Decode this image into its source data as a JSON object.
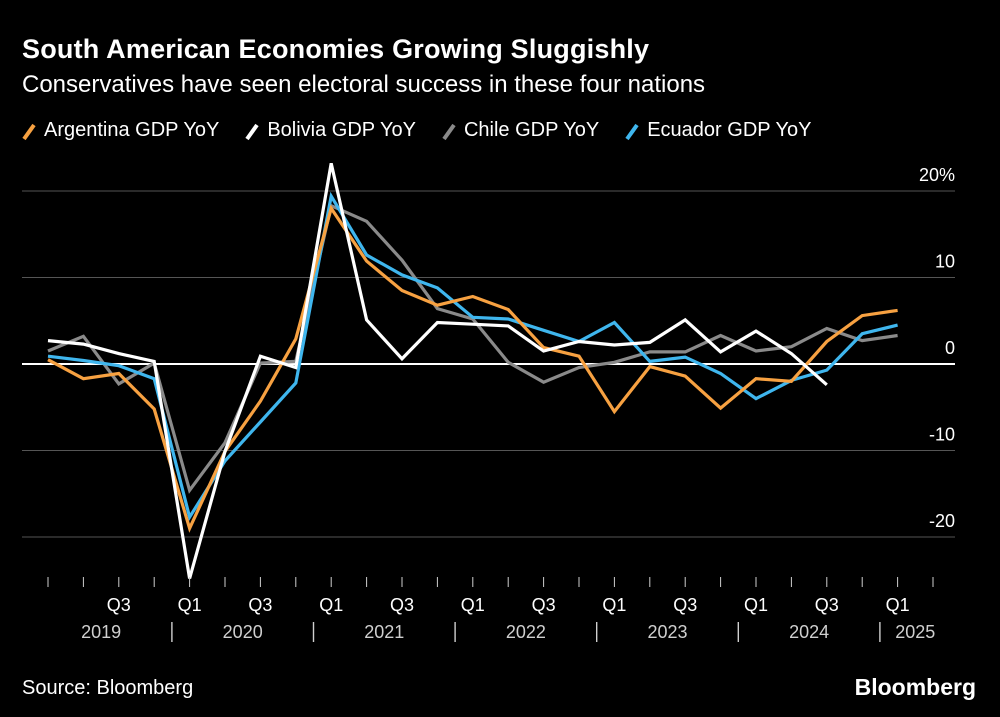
{
  "header": {
    "title": "South American Economies Growing Sluggishly",
    "subtitle": "Conservatives have seen electoral success in these four nations"
  },
  "footer": {
    "source": "Source: Bloomberg",
    "brand": "Bloomberg"
  },
  "chart_data": {
    "type": "line",
    "title": "South American Economies Growing Sluggishly",
    "subtitle": "Conservatives have seen electoral success in these four nations",
    "xlabel": "",
    "ylabel": "",
    "y_unit_label": "%",
    "ylim": [
      -25,
      22
    ],
    "y_ticks": [
      20,
      10,
      0,
      -10,
      -20
    ],
    "y_tick_labels": [
      "20%",
      "10",
      "0",
      "-10",
      "-20"
    ],
    "grid": true,
    "legend_position": "top",
    "x": [
      "2019 Q1",
      "2019 Q2",
      "2019 Q3",
      "2019 Q4",
      "2020 Q1",
      "2020 Q2",
      "2020 Q3",
      "2020 Q4",
      "2021 Q1",
      "2021 Q2",
      "2021 Q3",
      "2021 Q4",
      "2022 Q1",
      "2022 Q2",
      "2022 Q3",
      "2022 Q4",
      "2023 Q1",
      "2023 Q2",
      "2023 Q3",
      "2023 Q4",
      "2024 Q1",
      "2024 Q2",
      "2024 Q3",
      "2024 Q4",
      "2025 Q1",
      "2025 Q2"
    ],
    "x_tick_labels": [
      "Q3",
      "Q1",
      "Q3",
      "Q1",
      "Q3",
      "Q1",
      "Q3",
      "Q1",
      "Q3",
      "Q1",
      "Q3",
      "Q1"
    ],
    "x_tick_label_positions": [
      "2019 Q3",
      "2020 Q1",
      "2020 Q3",
      "2021 Q1",
      "2021 Q3",
      "2022 Q1",
      "2022 Q3",
      "2023 Q1",
      "2023 Q3",
      "2024 Q1",
      "2024 Q3",
      "2025 Q1"
    ],
    "year_labels": [
      "2019",
      "2020",
      "2021",
      "2022",
      "2023",
      "2024",
      "2025"
    ],
    "series": [
      {
        "name": "Argentina GDP YoY",
        "color": "#f7a141",
        "values": [
          0.5,
          -1.7,
          -1.1,
          -5.2,
          -19.0,
          -10.1,
          -4.3,
          2.9,
          18.0,
          11.9,
          8.5,
          6.8,
          7.8,
          6.3,
          1.9,
          0.9,
          -5.5,
          -0.3,
          -1.4,
          -5.1,
          -1.7,
          -2.0,
          2.6,
          5.6,
          6.2,
          null
        ]
      },
      {
        "name": "Bolivia GDP YoY",
        "color": "#ffffff",
        "values": [
          2.7,
          2.3,
          1.2,
          0.3,
          -24.8,
          -10.1,
          0.9,
          -0.4,
          23.2,
          5.1,
          0.6,
          4.8,
          4.6,
          4.4,
          1.5,
          2.6,
          2.2,
          2.5,
          5.1,
          1.4,
          3.8,
          1.2,
          -2.4,
          null,
          null,
          null
        ]
      },
      {
        "name": "Chile GDP YoY",
        "color": "#8a8a8a",
        "values": [
          1.5,
          3.2,
          -2.3,
          0.1,
          -14.6,
          -9.1,
          0.1,
          0.3,
          18.3,
          16.5,
          12.0,
          6.4,
          5.2,
          0.2,
          -2.1,
          -0.4,
          0.2,
          1.4,
          1.4,
          3.3,
          1.5,
          2.0,
          4.1,
          2.7,
          3.3,
          null
        ]
      },
      {
        "name": "Ecuador GDP YoY",
        "color": "#3fb6ee",
        "values": [
          0.9,
          0.4,
          -0.2,
          -1.7,
          -17.7,
          -11.2,
          -6.7,
          -2.2,
          19.4,
          12.6,
          10.3,
          8.8,
          5.4,
          5.2,
          3.9,
          2.6,
          4.8,
          0.3,
          0.8,
          -1.1,
          -4.0,
          -1.9,
          -0.7,
          3.5,
          4.5,
          null
        ]
      }
    ]
  }
}
